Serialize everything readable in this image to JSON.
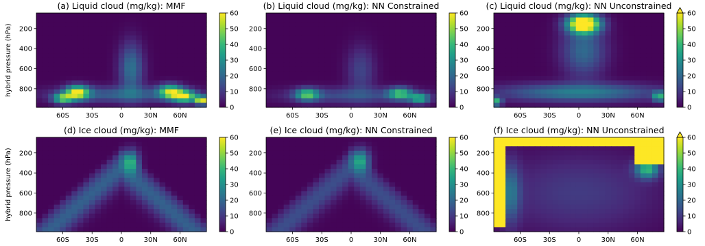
{
  "colormap": {
    "name": "viridis",
    "stops": [
      "#440154",
      "#482878",
      "#3e4989",
      "#31688e",
      "#26828e",
      "#1f9e89",
      "#35b779",
      "#6ece58",
      "#b5de2b",
      "#fde725"
    ]
  },
  "chart_data": [
    {
      "id": "a",
      "type": "heatmap",
      "title": "(a) Liquid cloud (mg/kg): MMF",
      "ylabel": "hybrid pressure (hPa)",
      "x_ticks": [
        "60S",
        "30S",
        "0",
        "30N",
        "60N"
      ],
      "y_ticks": [
        "200",
        "400",
        "600",
        "800"
      ],
      "y_axis_inverted": true,
      "colorbar": {
        "ticks": [
          "0",
          "10",
          "20",
          "30",
          "40",
          "50",
          "60"
        ],
        "range": [
          0,
          60
        ],
        "extend_max": false
      },
      "x_centers_deg": [
        -84,
        -78,
        -72,
        -66,
        -60,
        -54,
        -48,
        -42,
        -36,
        -30,
        -24,
        -18,
        -12,
        -6,
        0,
        6,
        12,
        18,
        24,
        30,
        36,
        42,
        48,
        54,
        60,
        66,
        72,
        78,
        84
      ],
      "y_levels_hpa": [
        65,
        110,
        155,
        200,
        245,
        290,
        335,
        380,
        425,
        470,
        515,
        560,
        605,
        650,
        695,
        740,
        785,
        830,
        875,
        920,
        965
      ],
      "features": [
        {
          "lat": -45,
          "p": 840,
          "dlat": 12,
          "dp": 70,
          "val": 52
        },
        {
          "lat": -60,
          "p": 900,
          "dlat": 10,
          "dp": 50,
          "val": 40
        },
        {
          "lat": 50,
          "p": 830,
          "dlat": 12,
          "dp": 70,
          "val": 45
        },
        {
          "lat": 65,
          "p": 880,
          "dlat": 12,
          "dp": 60,
          "val": 48
        },
        {
          "lat": 82,
          "p": 920,
          "dlat": 6,
          "dp": 40,
          "val": 58
        },
        {
          "lat": 10,
          "p": 600,
          "dlat": 12,
          "dp": 250,
          "val": 22
        },
        {
          "lat": 0,
          "p": 860,
          "dlat": 70,
          "dp": 80,
          "val": 18
        }
      ]
    },
    {
      "id": "b",
      "type": "heatmap",
      "title": "(b) Liquid cloud (mg/kg): NN Constrained",
      "x_ticks": [
        "60S",
        "30S",
        "0",
        "30N",
        "60N"
      ],
      "y_ticks": [
        "200",
        "400",
        "600",
        "800"
      ],
      "y_axis_inverted": true,
      "colorbar": {
        "ticks": [
          "0",
          "10",
          "20",
          "30",
          "40",
          "50",
          "60"
        ],
        "range": [
          0,
          60
        ],
        "extend_max": false
      },
      "features": [
        {
          "lat": -45,
          "p": 860,
          "dlat": 12,
          "dp": 60,
          "val": 38
        },
        {
          "lat": 50,
          "p": 850,
          "dlat": 12,
          "dp": 60,
          "val": 38
        },
        {
          "lat": 70,
          "p": 900,
          "dlat": 10,
          "dp": 50,
          "val": 35
        },
        {
          "lat": 10,
          "p": 620,
          "dlat": 14,
          "dp": 240,
          "val": 12
        },
        {
          "lat": 0,
          "p": 870,
          "dlat": 70,
          "dp": 80,
          "val": 14
        }
      ]
    },
    {
      "id": "c",
      "type": "heatmap",
      "title": "(c) Liquid cloud (mg/kg): NN Unconstrained",
      "x_ticks": [
        "60S",
        "30S",
        "0",
        "30N",
        "60N"
      ],
      "y_ticks": [
        "200",
        "400",
        "600",
        "800"
      ],
      "y_axis_inverted": true,
      "colorbar": {
        "ticks": [
          "0",
          "10",
          "20",
          "30",
          "40",
          "50",
          "60"
        ],
        "range": [
          0,
          60
        ],
        "extend_max": true
      },
      "features": [
        {
          "lat": 5,
          "p": 150,
          "dlat": 16,
          "dp": 90,
          "val": 75
        },
        {
          "lat": 5,
          "p": 420,
          "dlat": 22,
          "dp": 260,
          "val": 20
        },
        {
          "lat": 0,
          "p": 840,
          "dlat": 80,
          "dp": 90,
          "val": 25
        },
        {
          "lat": -85,
          "p": 930,
          "dlat": 6,
          "dp": 40,
          "val": 38
        },
        {
          "lat": 82,
          "p": 880,
          "dlat": 6,
          "dp": 50,
          "val": 35
        }
      ]
    },
    {
      "id": "d",
      "type": "heatmap",
      "title": "(d) Ice cloud (mg/kg): MMF",
      "ylabel": "hybrid pressure (hPa)",
      "x_ticks": [
        "60S",
        "30S",
        "0",
        "30N",
        "60N"
      ],
      "y_ticks": [
        "200",
        "400",
        "600",
        "800"
      ],
      "y_axis_inverted": true,
      "colorbar": {
        "ticks": [
          "0",
          "10",
          "20",
          "30",
          "40",
          "50",
          "60"
        ],
        "range": [
          0,
          60
        ],
        "extend_max": false
      },
      "features": [
        {
          "lat": 10,
          "p": 280,
          "dlat": 8,
          "dp": 110,
          "val": 32
        },
        {
          "arch": true,
          "val": 18
        }
      ]
    },
    {
      "id": "e",
      "type": "heatmap",
      "title": "(e) Ice cloud (mg/kg): NN Constrained",
      "x_ticks": [
        "60S",
        "30S",
        "0",
        "30N",
        "60N"
      ],
      "y_ticks": [
        "200",
        "400",
        "600",
        "800"
      ],
      "y_axis_inverted": true,
      "colorbar": {
        "ticks": [
          "0",
          "10",
          "20",
          "30",
          "40",
          "50",
          "60"
        ],
        "range": [
          0,
          60
        ],
        "extend_max": false
      },
      "features": [
        {
          "lat": 10,
          "p": 270,
          "dlat": 9,
          "dp": 110,
          "val": 32
        },
        {
          "arch": true,
          "val": 14
        }
      ]
    },
    {
      "id": "f",
      "type": "heatmap",
      "title": "(f) Ice cloud (mg/kg): NN Unconstrained",
      "x_ticks": [
        "60S",
        "30S",
        "0",
        "30N",
        "60N"
      ],
      "y_ticks": [
        "200",
        "400",
        "600",
        "800"
      ],
      "y_axis_inverted": true,
      "colorbar": {
        "ticks": [
          "0",
          "10",
          "20",
          "30",
          "40",
          "50",
          "60"
        ],
        "range": [
          0,
          60
        ],
        "extend_max": true
      },
      "features": [
        {
          "lat": -80,
          "p": 520,
          "dlat": 6,
          "dp": 420,
          "val": 80,
          "box": true
        },
        {
          "lat": 72,
          "p": 220,
          "dlat": 12,
          "dp": 100,
          "val": 70,
          "box": true
        },
        {
          "lat": 0,
          "p": 90,
          "dlat": 90,
          "dp": 30,
          "val": 70,
          "box": true
        },
        {
          "lat": 70,
          "p": 360,
          "dlat": 12,
          "dp": 90,
          "val": 38
        },
        {
          "lat": -70,
          "p": 600,
          "dlat": 10,
          "dp": 300,
          "val": 20
        },
        {
          "lat": 0,
          "p": 600,
          "dlat": 80,
          "dp": 400,
          "val": 10
        }
      ]
    }
  ]
}
